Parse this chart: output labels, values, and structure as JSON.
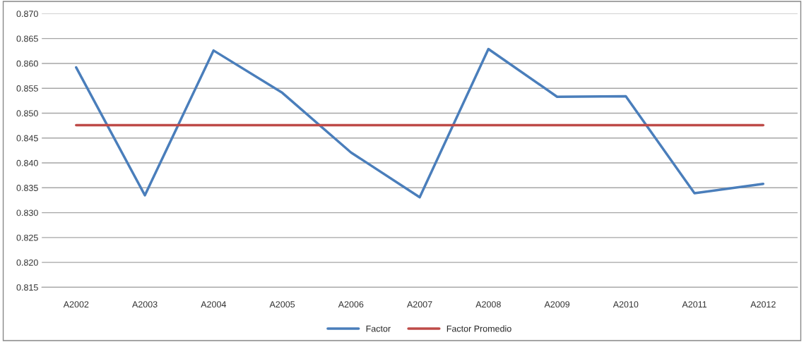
{
  "chart_data": {
    "type": "line",
    "categories": [
      "A2002",
      "A2003",
      "A2004",
      "A2005",
      "A2006",
      "A2007",
      "A2008",
      "A2009",
      "A2010",
      "A2011",
      "A2012"
    ],
    "series": [
      {
        "name": "Factor",
        "color": "#4a7ebb",
        "values": [
          0.8592,
          0.8335,
          0.8626,
          0.8541,
          0.8421,
          0.8331,
          0.8629,
          0.8533,
          0.8534,
          0.8339,
          0.8358
        ]
      },
      {
        "name": "Factor Promedio",
        "color": "#be4b48",
        "values": [
          0.8476,
          0.8476,
          0.8476,
          0.8476,
          0.8476,
          0.8476,
          0.8476,
          0.8476,
          0.8476,
          0.8476,
          0.8476
        ]
      }
    ],
    "ylim": [
      0.815,
      0.87
    ],
    "yticks": [
      {
        "value": 0.815,
        "label": "0.815"
      },
      {
        "value": 0.82,
        "label": "0.820"
      },
      {
        "value": 0.825,
        "label": "0.825"
      },
      {
        "value": 0.83,
        "label": "0.830"
      },
      {
        "value": 0.835,
        "label": "0.835"
      },
      {
        "value": 0.84,
        "label": "0.840"
      },
      {
        "value": 0.845,
        "label": "0.845"
      },
      {
        "value": 0.85,
        "label": "0.850"
      },
      {
        "value": 0.855,
        "label": "0.855"
      },
      {
        "value": 0.86,
        "label": "0.860"
      },
      {
        "value": 0.865,
        "label": "0.865"
      },
      {
        "value": 0.87,
        "label": "0.870"
      }
    ],
    "grid": "y",
    "legend": "bottom",
    "marker": "none",
    "line_style": "solid"
  }
}
